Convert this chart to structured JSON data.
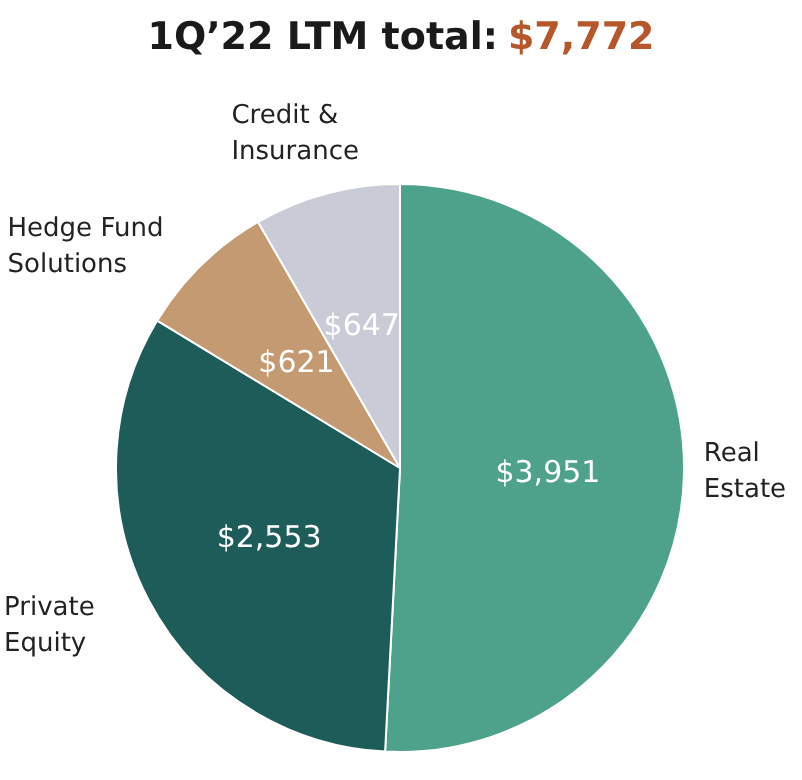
{
  "chart_data": {
    "type": "pie",
    "title": "1Q’22 LTM total:",
    "subtitle": "$7,772",
    "categories": [
      "Real Estate",
      "Private Equity",
      "Hedge Fund Solutions",
      "Credit & Insurance"
    ],
    "values": [
      3951,
      2553,
      621,
      647
    ],
    "colors": [
      "#4ea28c",
      "#1d5c58",
      "#c39a72",
      "#c9ccd6"
    ],
    "value_labels": [
      "$3,951",
      "$2,553",
      "$621",
      "$647"
    ],
    "legend": false
  }
}
